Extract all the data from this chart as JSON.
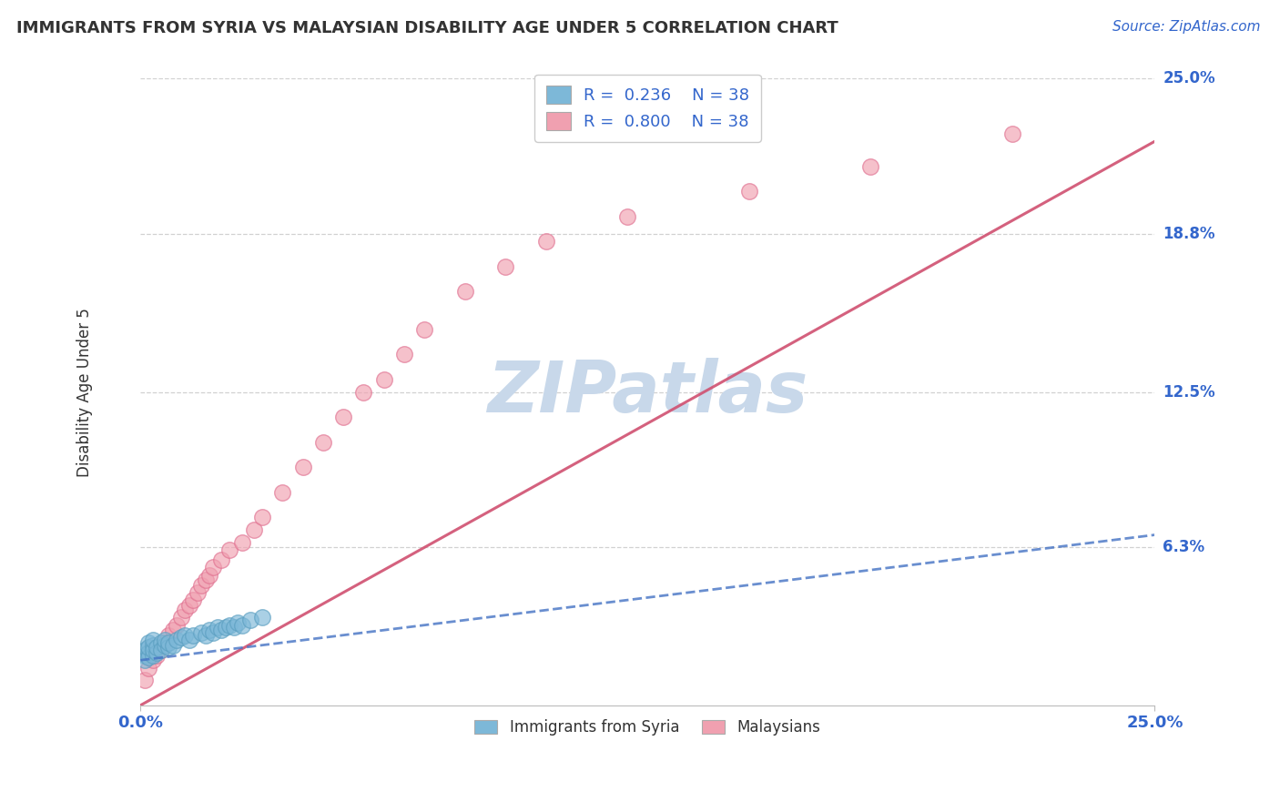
{
  "title": "IMMIGRANTS FROM SYRIA VS MALAYSIAN DISABILITY AGE UNDER 5 CORRELATION CHART",
  "source": "Source: ZipAtlas.com",
  "ylabel": "Disability Age Under 5",
  "xlim": [
    0.0,
    0.25
  ],
  "ylim": [
    0.0,
    0.25
  ],
  "ytick_labels": [
    "6.3%",
    "12.5%",
    "18.8%",
    "25.0%"
  ],
  "ytick_positions": [
    0.063,
    0.125,
    0.188,
    0.25
  ],
  "legend_r1": "R =  0.236",
  "legend_n1": "N = 38",
  "legend_r2": "R =  0.800",
  "legend_n2": "N = 38",
  "color_blue": "#7db8d8",
  "color_blue_edge": "#5a9ec0",
  "color_pink": "#f0a0b0",
  "color_pink_edge": "#e07090",
  "color_blue_line": "#4472c4",
  "color_pink_line": "#d05070",
  "watermark": "ZIPatlas",
  "watermark_color": "#c8d8ea",
  "syria_x": [
    0.001,
    0.001,
    0.001,
    0.002,
    0.002,
    0.002,
    0.002,
    0.003,
    0.003,
    0.003,
    0.003,
    0.004,
    0.004,
    0.005,
    0.005,
    0.006,
    0.006,
    0.007,
    0.007,
    0.008,
    0.009,
    0.01,
    0.011,
    0.012,
    0.013,
    0.015,
    0.016,
    0.017,
    0.018,
    0.019,
    0.02,
    0.021,
    0.022,
    0.023,
    0.024,
    0.025,
    0.027,
    0.03
  ],
  "syria_y": [
    0.02,
    0.022,
    0.018,
    0.025,
    0.021,
    0.019,
    0.023,
    0.02,
    0.024,
    0.022,
    0.026,
    0.021,
    0.023,
    0.025,
    0.022,
    0.024,
    0.026,
    0.023,
    0.025,
    0.024,
    0.026,
    0.027,
    0.028,
    0.026,
    0.028,
    0.029,
    0.028,
    0.03,
    0.029,
    0.031,
    0.03,
    0.031,
    0.032,
    0.031,
    0.033,
    0.032,
    0.034,
    0.035
  ],
  "malay_x": [
    0.001,
    0.002,
    0.003,
    0.004,
    0.005,
    0.006,
    0.007,
    0.008,
    0.009,
    0.01,
    0.011,
    0.012,
    0.013,
    0.014,
    0.015,
    0.016,
    0.017,
    0.018,
    0.02,
    0.022,
    0.025,
    0.028,
    0.03,
    0.035,
    0.04,
    0.045,
    0.05,
    0.055,
    0.06,
    0.065,
    0.07,
    0.08,
    0.09,
    0.1,
    0.12,
    0.15,
    0.18,
    0.215
  ],
  "malay_y": [
    0.01,
    0.015,
    0.018,
    0.02,
    0.022,
    0.025,
    0.028,
    0.03,
    0.032,
    0.035,
    0.038,
    0.04,
    0.042,
    0.045,
    0.048,
    0.05,
    0.052,
    0.055,
    0.058,
    0.062,
    0.065,
    0.07,
    0.075,
    0.085,
    0.095,
    0.105,
    0.115,
    0.125,
    0.13,
    0.14,
    0.15,
    0.165,
    0.175,
    0.185,
    0.195,
    0.205,
    0.215,
    0.228
  ],
  "pink_line_x": [
    0.0,
    0.25
  ],
  "pink_line_y": [
    0.0,
    0.225
  ],
  "blue_line_x": [
    0.0,
    0.25
  ],
  "blue_line_y": [
    0.018,
    0.068
  ]
}
